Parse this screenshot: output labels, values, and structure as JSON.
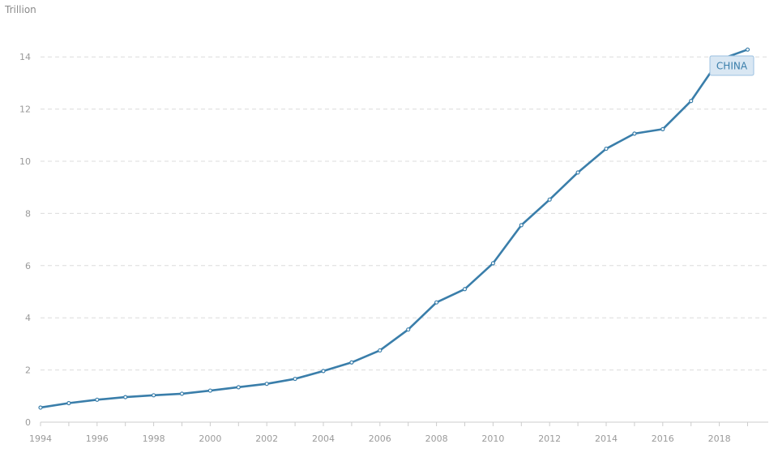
{
  "chart_data": {
    "type": "line",
    "ylabel": "Trillion",
    "x": [
      1994,
      1995,
      1996,
      1997,
      1998,
      1999,
      2000,
      2001,
      2002,
      2003,
      2004,
      2005,
      2006,
      2007,
      2008,
      2009,
      2010,
      2011,
      2012,
      2013,
      2014,
      2015,
      2016,
      2017,
      2018,
      2019
    ],
    "xticks": [
      "1994",
      "1996",
      "1998",
      "2000",
      "2002",
      "2004",
      "2006",
      "2008",
      "2010",
      "2012",
      "2014",
      "2016",
      "2018"
    ],
    "yticks": [
      "0",
      "2",
      "4",
      "6",
      "8",
      "10",
      "12",
      "14"
    ],
    "xlim": [
      1994,
      2019.7
    ],
    "ylim": [
      0,
      14
    ],
    "grid": true,
    "series": [
      {
        "name": "CHINA",
        "color": "#3a7eaa",
        "values": [
          0.56,
          0.73,
          0.86,
          0.96,
          1.03,
          1.09,
          1.21,
          1.34,
          1.47,
          1.66,
          1.96,
          2.29,
          2.75,
          3.55,
          4.59,
          5.1,
          6.09,
          7.55,
          8.53,
          9.57,
          10.48,
          11.06,
          11.23,
          12.31,
          13.89,
          14.28
        ]
      }
    ],
    "series_label": {
      "text": "CHINA",
      "background": "#d9e7f3",
      "border": "#9cc1e0",
      "text_color": "#3a7eaa"
    }
  }
}
